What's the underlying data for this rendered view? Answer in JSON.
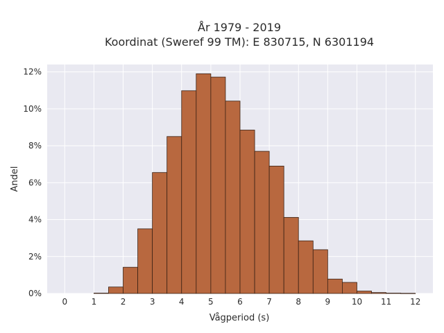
{
  "chart_data": {
    "type": "bar",
    "title_line1": "År 1979 - 2019",
    "title_line2": "Koordinat (Sweref 99 TM): E 830715, N 6301194",
    "xlabel": "Vågperiod (s)",
    "ylabel": "Andel",
    "xlim": [
      -0.6,
      12.6
    ],
    "ylim": [
      0,
      12.4
    ],
    "x_ticks": [
      0,
      1,
      2,
      3,
      4,
      5,
      6,
      7,
      8,
      9,
      10,
      11,
      12
    ],
    "x_tick_labels": [
      "0",
      "1",
      "2",
      "3",
      "4",
      "5",
      "6",
      "7",
      "8",
      "9",
      "10",
      "11",
      "12"
    ],
    "y_ticks": [
      0,
      2,
      4,
      6,
      8,
      10,
      12
    ],
    "y_tick_labels": [
      "0%",
      "2%",
      "4%",
      "6%",
      "8%",
      "10%",
      "12%"
    ],
    "bin_width": 0.5,
    "bins": [
      {
        "x0": 1.0,
        "value": 0.02
      },
      {
        "x0": 1.5,
        "value": 0.35
      },
      {
        "x0": 2.0,
        "value": 1.42
      },
      {
        "x0": 2.5,
        "value": 3.5
      },
      {
        "x0": 3.0,
        "value": 6.55
      },
      {
        "x0": 3.5,
        "value": 8.5
      },
      {
        "x0": 4.0,
        "value": 10.98
      },
      {
        "x0": 4.5,
        "value": 11.9
      },
      {
        "x0": 5.0,
        "value": 11.72
      },
      {
        "x0": 5.5,
        "value": 10.42
      },
      {
        "x0": 6.0,
        "value": 8.85
      },
      {
        "x0": 6.5,
        "value": 7.7
      },
      {
        "x0": 7.0,
        "value": 6.9
      },
      {
        "x0": 7.5,
        "value": 4.12
      },
      {
        "x0": 8.0,
        "value": 2.85
      },
      {
        "x0": 8.5,
        "value": 2.37
      },
      {
        "x0": 9.0,
        "value": 0.78
      },
      {
        "x0": 9.5,
        "value": 0.6
      },
      {
        "x0": 10.0,
        "value": 0.13
      },
      {
        "x0": 10.5,
        "value": 0.05
      },
      {
        "x0": 11.0,
        "value": 0.02
      },
      {
        "x0": 11.5,
        "value": 0.01
      }
    ],
    "grid": true,
    "legend": "none",
    "bar_color": "#b8683f",
    "plot_background": "#e9e9f1"
  }
}
